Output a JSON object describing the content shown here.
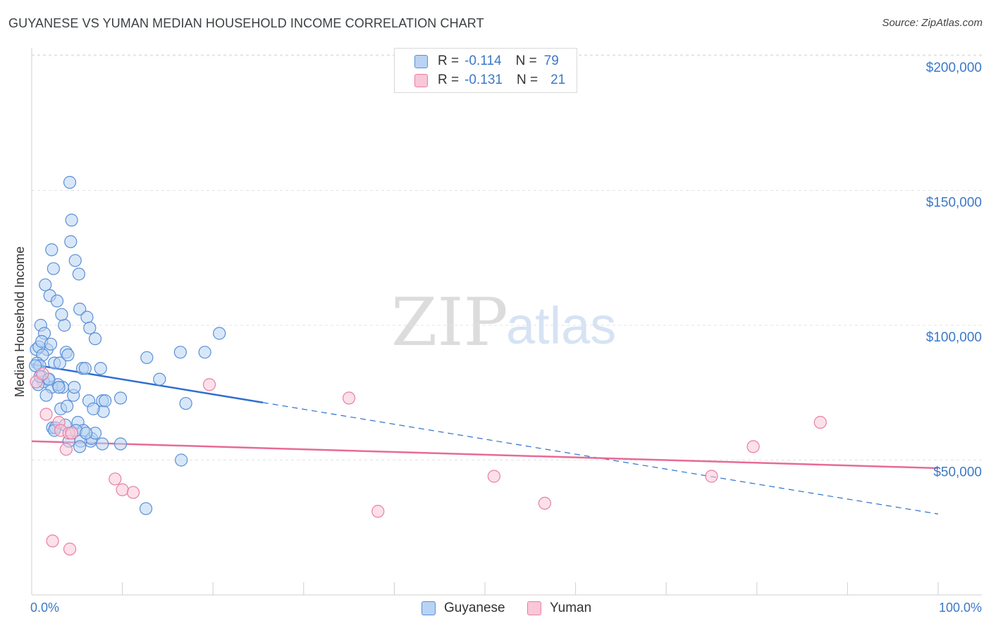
{
  "title": "GUYANESE VS YUMAN MEDIAN HOUSEHOLD INCOME CORRELATION CHART",
  "source": "Source: ZipAtlas.com",
  "watermark": {
    "zip": "ZIP",
    "atlas": "atlas"
  },
  "colors": {
    "guyanese": "#5a8fd8",
    "guyanese_fill": "#b8d3f3",
    "yuman": "#e87fa3",
    "yuman_fill": "#f9c7d8",
    "trend_blue": "#2f6fce",
    "trend_pink": "#e86a97",
    "axis_text": "#3b78c9"
  },
  "legend": {
    "rows": [
      {
        "r_label": "R =",
        "r_value": "-0.114",
        "n_label": "N =",
        "n_value": "79"
      },
      {
        "r_label": "R =",
        "r_value": "-0.131",
        "n_label": "N =",
        "n_value": "21"
      }
    ]
  },
  "bottom_legend": {
    "series1": "Guyanese",
    "series2": "Yuman"
  },
  "chart_data": {
    "type": "scatter",
    "title": "GUYANESE VS YUMAN MEDIAN HOUSEHOLD INCOME CORRELATION CHART",
    "xlabel": "",
    "ylabel": "Median Household Income",
    "xlim": [
      0,
      100
    ],
    "ylim": [
      0,
      210000
    ],
    "y_ticks": [
      50000,
      100000,
      150000,
      200000
    ],
    "y_tick_labels": [
      "$50,000",
      "$100,000",
      "$150,000",
      "$200,000"
    ],
    "x_tick_labels": [
      "0.0%",
      "100.0%"
    ],
    "grid": true,
    "series": [
      {
        "name": "Guyanese",
        "x": [
          4.2,
          4.4,
          4.3,
          4.8,
          5.2,
          5.3,
          6.1,
          6.4,
          7.0,
          2.2,
          2.4,
          1.5,
          2.0,
          2.8,
          3.6,
          3.3,
          1.0,
          1.4,
          1.7,
          0.5,
          0.8,
          1.2,
          0.6,
          0.9,
          0.4,
          1.1,
          1.8,
          2.5,
          3.1,
          3.8,
          4.0,
          5.6,
          5.9,
          6.3,
          7.8,
          7.9,
          8.1,
          7.6,
          9.8,
          12.7,
          14.1,
          16.4,
          17.0,
          19.1,
          20.7,
          6.8,
          3.4,
          2.2,
          1.3,
          0.7,
          2.9,
          3.2,
          3.9,
          4.6,
          4.7,
          5.1,
          5.7,
          6.5,
          6.6,
          1.6,
          2.3,
          2.6,
          0.9,
          1.9,
          3.0,
          3.7,
          4.9,
          5.4,
          7.0,
          7.8,
          9.8,
          12.6,
          16.5,
          1.1,
          2.1,
          2.5,
          4.1,
          5.3,
          6.0
        ],
        "y": [
          153000,
          139000,
          131000,
          124000,
          119000,
          106000,
          103000,
          99000,
          95000,
          128000,
          121000,
          115000,
          111000,
          109000,
          100000,
          104000,
          100000,
          97000,
          91000,
          91000,
          92000,
          89000,
          86000,
          85000,
          85000,
          81000,
          80000,
          86000,
          86000,
          90000,
          89000,
          84000,
          84000,
          72000,
          72000,
          68000,
          72000,
          84000,
          73000,
          88000,
          80000,
          90000,
          71000,
          90000,
          97000,
          69000,
          77000,
          77000,
          79000,
          78000,
          78000,
          69000,
          70000,
          74000,
          77000,
          64000,
          61000,
          57000,
          58000,
          74000,
          62000,
          62000,
          81000,
          80000,
          77000,
          63000,
          61000,
          57000,
          60000,
          56000,
          56000,
          32000,
          50000,
          94000,
          93000,
          61000,
          57000,
          55000,
          60000
        ]
      },
      {
        "name": "Yuman",
        "x": [
          0.5,
          1.2,
          1.6,
          3.0,
          3.2,
          3.8,
          4.1,
          4.4,
          9.2,
          10.0,
          11.2,
          19.6,
          35.0,
          38.2,
          51.0,
          56.6,
          75.0,
          79.6,
          87.0,
          2.3,
          4.2
        ],
        "y": [
          79000,
          82000,
          67000,
          64000,
          61000,
          54000,
          60000,
          60000,
          43000,
          39000,
          38000,
          78000,
          73000,
          31000,
          44000,
          34000,
          44000,
          55000,
          64000,
          20000,
          17000
        ]
      }
    ],
    "trend_lines": [
      {
        "series": "Guyanese",
        "x": [
          0,
          100
        ],
        "y": [
          85500,
          30000
        ],
        "solid_until_x": 25.5
      },
      {
        "series": "Yuman",
        "x": [
          0,
          100
        ],
        "y": [
          57000,
          47000
        ]
      }
    ]
  }
}
